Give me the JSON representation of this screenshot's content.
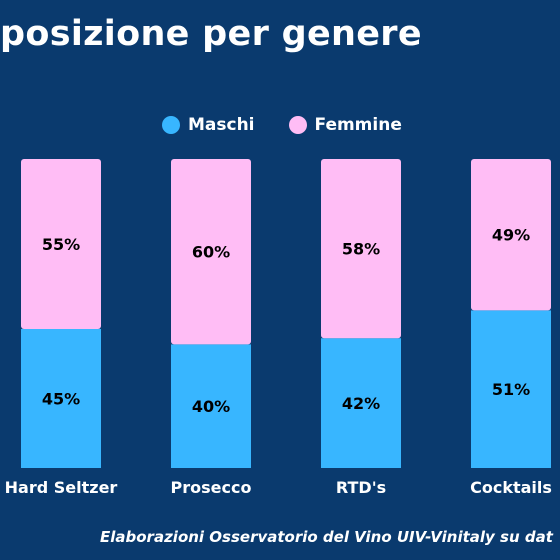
{
  "title": "posizione per genere",
  "footer": "Elaborazioni Osservatorio del Vino UIV-Vinitaly su dat",
  "colors": {
    "background": "#0a3a6e",
    "maschi": "#38b6ff",
    "femmine": "#ffbdf5",
    "text_dark": "#000000",
    "text_light": "#ffffff"
  },
  "chart_data": {
    "type": "bar",
    "stacked": true,
    "categories": [
      "Hard Seltzer",
      "Prosecco",
      "RTD's",
      "Cocktails"
    ],
    "series": [
      {
        "name": "Maschi",
        "values": [
          45,
          40,
          42,
          51
        ],
        "labels": [
          "45%",
          "40%",
          "42%",
          "51%"
        ]
      },
      {
        "name": "Femmine",
        "values": [
          55,
          60,
          58,
          49
        ],
        "labels": [
          "55%",
          "60%",
          "58%",
          "49%"
        ]
      }
    ],
    "ylim": [
      0,
      100
    ],
    "legend": "top-center",
    "grid": false
  }
}
